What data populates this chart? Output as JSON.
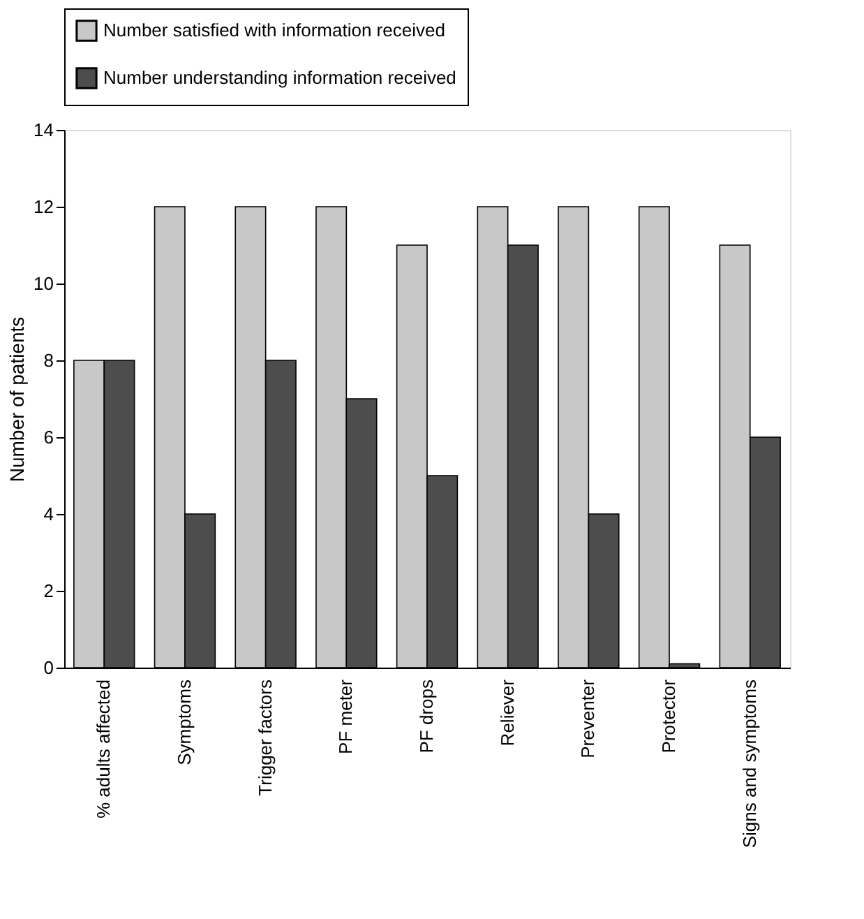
{
  "chart_data": {
    "type": "bar",
    "categories": [
      "% adults affected",
      "Symptoms",
      "Trigger factors",
      "PF meter",
      "PF drops",
      "Reliever",
      "Preventer",
      "Protector",
      "Signs and symptoms"
    ],
    "series": [
      {
        "name": "Number satisfied with information received",
        "color": "#c8c8c8",
        "values": [
          8,
          12,
          12,
          12,
          11,
          12,
          12,
          12,
          11
        ]
      },
      {
        "name": "Number understanding information received",
        "color": "#4d4d4d",
        "values": [
          8,
          4,
          8,
          7,
          5,
          11,
          4,
          0.1,
          6
        ]
      }
    ],
    "ylabel": "Number of patients",
    "ylim": [
      0,
      14
    ],
    "yticks": [
      0,
      2,
      4,
      6,
      8,
      10,
      12,
      14
    ],
    "legend": "top",
    "grid": false
  }
}
